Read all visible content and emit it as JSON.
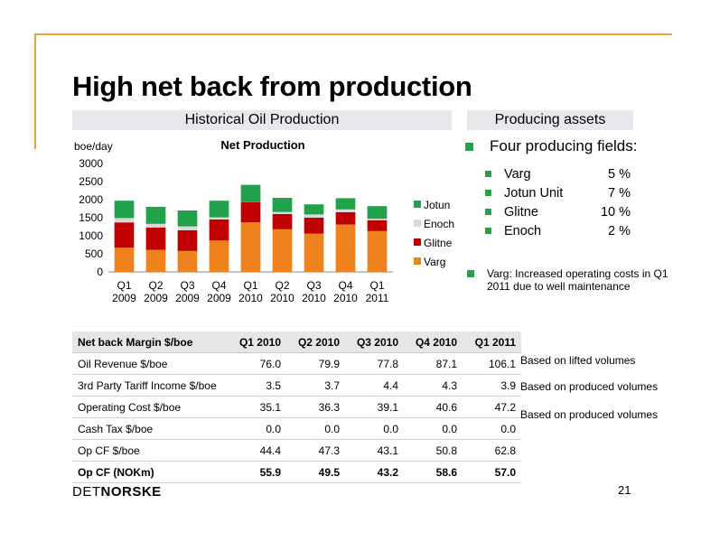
{
  "title": "High net back from production",
  "left_header": "Historical Oil Production",
  "right_header": "Producing assets",
  "chart_data": {
    "type": "bar",
    "stacked": true,
    "title": "Net Production",
    "ylabel": "boe/day",
    "ylim": [
      0,
      3000
    ],
    "yticks": [
      "0",
      "500",
      "1000",
      "1500",
      "2000",
      "2500",
      "3000"
    ],
    "categories": [
      [
        "Q1",
        "2009"
      ],
      [
        "Q2",
        "2009"
      ],
      [
        "Q3",
        "2009"
      ],
      [
        "Q4",
        "2009"
      ],
      [
        "Q1",
        "2010"
      ],
      [
        "Q2",
        "2010"
      ],
      [
        "Q3",
        "2010"
      ],
      [
        "Q4",
        "2010"
      ],
      [
        "Q1",
        "2011"
      ]
    ],
    "series": [
      {
        "name": "Varg",
        "color": "#F0821E",
        "values": [
          670,
          610,
          580,
          870,
          1370,
          1180,
          1060,
          1310,
          1130
        ]
      },
      {
        "name": "Glitne",
        "color": "#C00000",
        "values": [
          700,
          620,
          570,
          580,
          560,
          420,
          440,
          340,
          300
        ]
      },
      {
        "name": "Enoch",
        "color": "#D9D9D9",
        "values": [
          120,
          100,
          110,
          60,
          0,
          60,
          90,
          80,
          40
        ]
      },
      {
        "name": "Jotun",
        "color": "#22A24A",
        "values": [
          480,
          470,
          440,
          460,
          480,
          390,
          280,
          310,
          350
        ]
      }
    ],
    "legend_order": [
      "Jotun",
      "Enoch",
      "Glitne",
      "Varg"
    ],
    "legend_position": "right"
  },
  "assets": {
    "main_bullet": "Four producing fields:",
    "fields": [
      {
        "name": "Varg",
        "pct": "5 %"
      },
      {
        "name": "Jotun Unit",
        "pct": "7 %"
      },
      {
        "name": "Glitne",
        "pct": "10 %"
      },
      {
        "name": "Enoch",
        "pct": "2 %"
      }
    ],
    "note": "Varg: Increased operating costs in Q1 2011 due to well maintenance"
  },
  "netback_table": {
    "headers": [
      "Net back Margin $/boe",
      "Q1 2010",
      "Q2 2010",
      "Q3 2010",
      "Q4 2010",
      "Q1 2011"
    ],
    "rows": [
      {
        "label": "Oil Revenue $/boe",
        "values": [
          "76.0",
          "79.9",
          "77.8",
          "87.1",
          "106.1"
        ],
        "bold": false
      },
      {
        "label": "3rd Party Tariff Income $/boe",
        "values": [
          "3.5",
          "3.7",
          "4.4",
          "4.3",
          "3.9"
        ],
        "bold": false
      },
      {
        "label": "Operating Cost $/boe",
        "values": [
          "35.1",
          "36.3",
          "39.1",
          "40.6",
          "47.2"
        ],
        "bold": false
      },
      {
        "label": "Cash Tax $/boe",
        "values": [
          "0.0",
          "0.0",
          "0.0",
          "0.0",
          "0.0"
        ],
        "bold": false
      },
      {
        "label": "Op CF $/boe",
        "values": [
          "44.4",
          "47.3",
          "43.1",
          "50.8",
          "62.8"
        ],
        "bold": false
      },
      {
        "label": "Op CF (NOKm)",
        "values": [
          "55.9",
          "49.5",
          "43.2",
          "58.6",
          "57.0"
        ],
        "bold": true
      }
    ],
    "notes": [
      "Based on lifted volumes",
      "Based on produced volumes",
      "Based on produced volumes"
    ]
  },
  "logo": {
    "part1": "DET",
    "part2": "NORSKE"
  },
  "page_number": "21",
  "colors": {
    "accent_frame": "#E8A33D",
    "bullet_green": "#22A24A",
    "header_bg": "#E8E8EC"
  }
}
